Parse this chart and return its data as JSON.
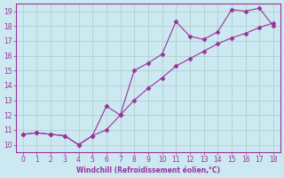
{
  "xlabel": "Windchill (Refroidissement éolien,°C)",
  "line1_x": [
    0,
    1,
    2,
    3,
    4,
    5,
    6,
    7,
    8,
    9,
    10,
    11,
    12,
    13,
    14,
    15,
    16,
    17,
    18
  ],
  "line1_y": [
    10.7,
    10.8,
    10.7,
    10.6,
    10.0,
    10.6,
    12.6,
    12.0,
    15.0,
    15.5,
    16.1,
    18.3,
    17.3,
    17.1,
    17.6,
    19.1,
    19.0,
    19.2,
    18.0
  ],
  "line2_x": [
    0,
    1,
    2,
    3,
    4,
    5,
    6,
    7,
    8,
    9,
    10,
    11,
    12,
    13,
    14,
    15,
    16,
    17,
    18
  ],
  "line2_y": [
    10.7,
    10.8,
    10.7,
    10.6,
    10.0,
    10.6,
    11.0,
    12.0,
    13.0,
    13.8,
    14.5,
    15.3,
    15.8,
    16.3,
    16.8,
    17.2,
    17.5,
    17.9,
    18.2
  ],
  "line_color": "#993399",
  "marker": "D",
  "marker_size": 2.5,
  "bg_color": "#cce8f0",
  "grid_color": "#aacccc",
  "xlim": [
    -0.5,
    18.5
  ],
  "ylim": [
    9.5,
    19.5
  ],
  "xticks": [
    0,
    1,
    2,
    3,
    4,
    5,
    6,
    7,
    8,
    9,
    10,
    11,
    12,
    13,
    14,
    15,
    16,
    17,
    18
  ],
  "yticks": [
    10,
    11,
    12,
    13,
    14,
    15,
    16,
    17,
    18,
    19
  ]
}
